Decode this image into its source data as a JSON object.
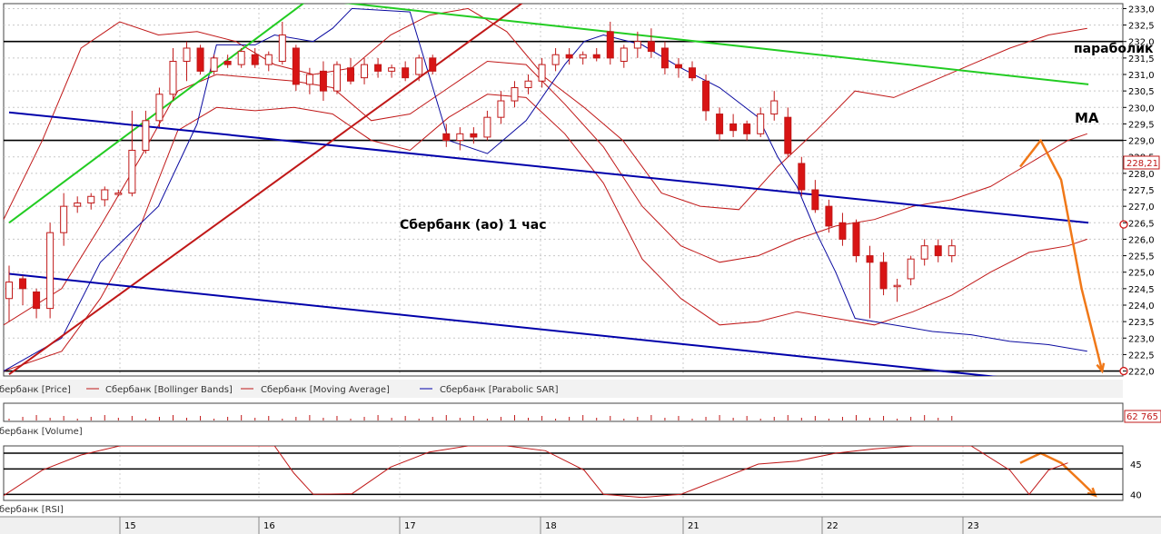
{
  "chart_data": {
    "type": "line",
    "annotations": {
      "main": "Сбербанк (ао)   1 час",
      "parabolic": "параболик",
      "ma": "МА"
    },
    "price_axis": {
      "ylim": [
        221.85,
        233.15
      ],
      "ticks": [
        "233,0",
        "232,5",
        "232,0",
        "231,5",
        "231,0",
        "230,5",
        "230,0",
        "229,5",
        "229,0",
        "228,5",
        "228,0",
        "227,5",
        "227,0",
        "226,5",
        "226,0",
        "225,5",
        "225,0",
        "224,5",
        "224,0",
        "223,5",
        "223,0",
        "222,5",
        "222,0"
      ],
      "current_label": "228,21",
      "current_value": 228.21
    },
    "volume_axis": {
      "label": "62 765"
    },
    "rsi_axis": {
      "ticks": [
        "45",
        "40"
      ],
      "ylim": [
        39,
        48
      ]
    },
    "x_axis": {
      "dates": [
        "15",
        "16",
        "17",
        "18",
        "21",
        "22",
        "23"
      ]
    },
    "legend": {
      "price": "Сбербанк [Price]",
      "bb": "Сбербанк [Bollinger Bands]",
      "ma": "Сбербанк [Moving Average]",
      "sar": "Сбербанк [Parabolic SAR]",
      "volume": "Сбербанк [Volume]",
      "rsi": "Сбербанк [RSI]"
    },
    "horizontal_levels": [
      232.0,
      229.0,
      222.0
    ],
    "trendlines": [
      {
        "name": "green-support",
        "color": "#22cc22",
        "from": [
          0,
          226.5
        ],
        "to": [
          22,
          233.3
        ]
      },
      {
        "name": "green-resistance",
        "color": "#22cc22",
        "from": [
          24,
          233.2
        ],
        "to": [
          79,
          230.7
        ]
      },
      {
        "name": "red-uptrend",
        "color": "#c01818",
        "from": [
          0,
          221.9
        ],
        "to": [
          38,
          233.3
        ]
      },
      {
        "name": "blue-channel-upper",
        "color": "#0000aa",
        "from": [
          0,
          229.85
        ],
        "to": [
          79,
          226.5
        ]
      },
      {
        "name": "blue-channel-lower",
        "color": "#0000aa",
        "from": [
          0,
          224.95
        ],
        "to": [
          74,
          221.75
        ]
      }
    ],
    "forecast_arrows": [
      {
        "name": "price-forecast",
        "color": "#f07818",
        "points": [
          [
            74,
            228.2
          ],
          [
            75.5,
            229.0
          ],
          [
            77,
            227.8
          ],
          [
            78.5,
            224.5
          ],
          [
            80,
            222.0
          ]
        ]
      },
      {
        "name": "rsi-forecast",
        "color": "#f07818",
        "points": [
          [
            74,
            45.2
          ],
          [
            75.5,
            46.8
          ],
          [
            77,
            45.2
          ],
          [
            78.5,
            42.0
          ],
          [
            79.5,
            39.8
          ]
        ]
      }
    ],
    "candles": [
      {
        "o": 224.2,
        "h": 225.2,
        "l": 223.5,
        "c": 224.7
      },
      {
        "o": 224.8,
        "h": 224.9,
        "l": 224.0,
        "c": 224.5
      },
      {
        "o": 224.4,
        "h": 224.5,
        "l": 223.6,
        "c": 223.9
      },
      {
        "o": 223.9,
        "h": 226.5,
        "l": 223.6,
        "c": 226.2
      },
      {
        "o": 226.2,
        "h": 227.4,
        "l": 225.8,
        "c": 227.0
      },
      {
        "o": 227.0,
        "h": 227.3,
        "l": 226.8,
        "c": 227.1
      },
      {
        "o": 227.1,
        "h": 227.4,
        "l": 226.9,
        "c": 227.3
      },
      {
        "o": 227.2,
        "h": 227.6,
        "l": 227.0,
        "c": 227.5
      },
      {
        "o": 227.4,
        "h": 227.5,
        "l": 227.3,
        "c": 227.4
      },
      {
        "o": 227.4,
        "h": 229.9,
        "l": 227.3,
        "c": 228.7
      },
      {
        "o": 228.7,
        "h": 229.9,
        "l": 228.6,
        "c": 229.6
      },
      {
        "o": 229.6,
        "h": 230.6,
        "l": 229.4,
        "c": 230.4
      },
      {
        "o": 230.4,
        "h": 231.8,
        "l": 230.2,
        "c": 231.4
      },
      {
        "o": 231.4,
        "h": 232.0,
        "l": 230.8,
        "c": 231.8
      },
      {
        "o": 231.8,
        "h": 231.9,
        "l": 231.0,
        "c": 231.1
      },
      {
        "o": 231.1,
        "h": 231.6,
        "l": 231.0,
        "c": 231.5
      },
      {
        "o": 231.4,
        "h": 231.6,
        "l": 231.2,
        "c": 231.3
      },
      {
        "o": 231.3,
        "h": 231.8,
        "l": 231.2,
        "c": 231.7
      },
      {
        "o": 231.6,
        "h": 231.8,
        "l": 231.2,
        "c": 231.3
      },
      {
        "o": 231.3,
        "h": 231.7,
        "l": 231.1,
        "c": 231.6
      },
      {
        "o": 231.4,
        "h": 232.6,
        "l": 231.3,
        "c": 232.2
      },
      {
        "o": 231.8,
        "h": 231.9,
        "l": 230.5,
        "c": 230.7
      },
      {
        "o": 230.7,
        "h": 231.2,
        "l": 230.4,
        "c": 231.0
      },
      {
        "o": 231.1,
        "h": 231.4,
        "l": 230.2,
        "c": 230.5
      },
      {
        "o": 230.5,
        "h": 231.4,
        "l": 230.4,
        "c": 231.3
      },
      {
        "o": 231.2,
        "h": 231.5,
        "l": 230.7,
        "c": 230.8
      },
      {
        "o": 230.9,
        "h": 231.5,
        "l": 230.7,
        "c": 231.3
      },
      {
        "o": 231.3,
        "h": 231.5,
        "l": 230.9,
        "c": 231.1
      },
      {
        "o": 231.1,
        "h": 231.3,
        "l": 230.9,
        "c": 231.2
      },
      {
        "o": 231.2,
        "h": 231.4,
        "l": 230.8,
        "c": 230.9
      },
      {
        "o": 231.0,
        "h": 231.6,
        "l": 230.8,
        "c": 231.5
      },
      {
        "o": 231.5,
        "h": 231.6,
        "l": 231.0,
        "c": 231.1
      },
      {
        "o": 229.2,
        "h": 229.5,
        "l": 228.8,
        "c": 229.0
      },
      {
        "o": 229.0,
        "h": 229.4,
        "l": 228.7,
        "c": 229.2
      },
      {
        "o": 229.2,
        "h": 229.4,
        "l": 228.9,
        "c": 229.1
      },
      {
        "o": 229.1,
        "h": 229.9,
        "l": 229.0,
        "c": 229.7
      },
      {
        "o": 229.7,
        "h": 230.5,
        "l": 229.5,
        "c": 230.2
      },
      {
        "o": 230.2,
        "h": 230.8,
        "l": 230.0,
        "c": 230.6
      },
      {
        "o": 230.6,
        "h": 231.0,
        "l": 230.4,
        "c": 230.8
      },
      {
        "o": 230.8,
        "h": 231.5,
        "l": 230.6,
        "c": 231.3
      },
      {
        "o": 231.3,
        "h": 231.8,
        "l": 231.1,
        "c": 231.6
      },
      {
        "o": 231.6,
        "h": 231.8,
        "l": 231.3,
        "c": 231.5
      },
      {
        "o": 231.5,
        "h": 231.7,
        "l": 231.3,
        "c": 231.6
      },
      {
        "o": 231.6,
        "h": 231.8,
        "l": 231.4,
        "c": 231.5
      },
      {
        "o": 232.3,
        "h": 232.6,
        "l": 231.3,
        "c": 231.5
      },
      {
        "o": 231.4,
        "h": 231.9,
        "l": 231.2,
        "c": 231.8
      },
      {
        "o": 231.8,
        "h": 232.3,
        "l": 231.5,
        "c": 232.0
      },
      {
        "o": 232.0,
        "h": 232.4,
        "l": 231.5,
        "c": 231.7
      },
      {
        "o": 231.8,
        "h": 232.0,
        "l": 231.0,
        "c": 231.2
      },
      {
        "o": 231.3,
        "h": 231.5,
        "l": 230.9,
        "c": 231.2
      },
      {
        "o": 231.2,
        "h": 231.4,
        "l": 230.8,
        "c": 230.9
      },
      {
        "o": 230.8,
        "h": 231.0,
        "l": 229.6,
        "c": 229.9
      },
      {
        "o": 229.8,
        "h": 230.0,
        "l": 229.0,
        "c": 229.2
      },
      {
        "o": 229.5,
        "h": 229.8,
        "l": 229.1,
        "c": 229.3
      },
      {
        "o": 229.5,
        "h": 229.6,
        "l": 229.0,
        "c": 229.2
      },
      {
        "o": 229.2,
        "h": 230.0,
        "l": 229.1,
        "c": 229.8
      },
      {
        "o": 229.8,
        "h": 230.5,
        "l": 229.6,
        "c": 230.2
      },
      {
        "o": 229.7,
        "h": 230.0,
        "l": 228.5,
        "c": 228.6
      },
      {
        "o": 228.3,
        "h": 228.5,
        "l": 227.3,
        "c": 227.5
      },
      {
        "o": 227.5,
        "h": 227.8,
        "l": 226.8,
        "c": 226.9
      },
      {
        "o": 227.0,
        "h": 227.2,
        "l": 226.2,
        "c": 226.4
      },
      {
        "o": 226.5,
        "h": 226.8,
        "l": 225.8,
        "c": 226.0
      },
      {
        "o": 226.5,
        "h": 226.6,
        "l": 225.3,
        "c": 225.5
      },
      {
        "o": 225.5,
        "h": 225.8,
        "l": 223.6,
        "c": 225.3
      },
      {
        "o": 225.3,
        "h": 225.6,
        "l": 224.3,
        "c": 224.5
      },
      {
        "o": 224.6,
        "h": 224.8,
        "l": 224.1,
        "c": 224.6
      },
      {
        "o": 224.8,
        "h": 225.5,
        "l": 224.6,
        "c": 225.4
      },
      {
        "o": 225.4,
        "h": 226.0,
        "l": 225.2,
        "c": 225.8
      },
      {
        "o": 225.8,
        "h": 226.0,
        "l": 225.3,
        "c": 225.5
      },
      {
        "o": 225.5,
        "h": 226.0,
        "l": 225.3,
        "c": 225.8
      }
    ],
    "bollinger_upper": [
      [
        0,
        226.6
      ],
      [
        4,
        229.0
      ],
      [
        8,
        231.8
      ],
      [
        12,
        232.6
      ],
      [
        16,
        232.2
      ],
      [
        20,
        232.3
      ],
      [
        24,
        232.0
      ],
      [
        28,
        231.3
      ],
      [
        32,
        231.0
      ],
      [
        36,
        231.2
      ],
      [
        40,
        232.2
      ],
      [
        44,
        232.8
      ],
      [
        48,
        233.0
      ],
      [
        52,
        232.3
      ],
      [
        56,
        230.9
      ],
      [
        60,
        230.0
      ],
      [
        64,
        229.0
      ],
      [
        68,
        227.4
      ],
      [
        72,
        227.0
      ],
      [
        76,
        226.9
      ],
      [
        80,
        228.2
      ],
      [
        84,
        229.3
      ],
      [
        88,
        230.5
      ],
      [
        92,
        230.3
      ],
      [
        96,
        230.8
      ],
      [
        100,
        231.3
      ],
      [
        104,
        231.8
      ],
      [
        108,
        232.2
      ],
      [
        112,
        232.4
      ]
    ],
    "bollinger_lower": [
      [
        0,
        222.0
      ],
      [
        6,
        222.6
      ],
      [
        10,
        224.2
      ],
      [
        14,
        226.3
      ],
      [
        18,
        229.3
      ],
      [
        22,
        230.0
      ],
      [
        26,
        229.9
      ],
      [
        30,
        230.0
      ],
      [
        34,
        229.8
      ],
      [
        38,
        229.0
      ],
      [
        42,
        228.7
      ],
      [
        46,
        229.7
      ],
      [
        50,
        230.4
      ],
      [
        54,
        230.3
      ],
      [
        58,
        229.2
      ],
      [
        62,
        227.7
      ],
      [
        66,
        225.4
      ],
      [
        70,
        224.2
      ],
      [
        74,
        223.4
      ],
      [
        78,
        223.5
      ],
      [
        82,
        223.8
      ],
      [
        86,
        223.6
      ],
      [
        90,
        223.4
      ],
      [
        94,
        223.8
      ],
      [
        98,
        224.3
      ],
      [
        102,
        225.0
      ],
      [
        106,
        225.6
      ],
      [
        110,
        225.8
      ],
      [
        112,
        226.0
      ]
    ],
    "moving_average": [
      [
        0,
        223.4
      ],
      [
        6,
        224.5
      ],
      [
        10,
        226.4
      ],
      [
        14,
        228.4
      ],
      [
        18,
        230.5
      ],
      [
        22,
        231.0
      ],
      [
        26,
        230.9
      ],
      [
        30,
        230.8
      ],
      [
        34,
        230.6
      ],
      [
        38,
        229.6
      ],
      [
        42,
        229.8
      ],
      [
        46,
        230.6
      ],
      [
        50,
        231.4
      ],
      [
        54,
        231.3
      ],
      [
        58,
        230.1
      ],
      [
        62,
        228.8
      ],
      [
        66,
        227.0
      ],
      [
        70,
        225.8
      ],
      [
        74,
        225.3
      ],
      [
        78,
        225.5
      ],
      [
        82,
        226.0
      ],
      [
        86,
        226.4
      ],
      [
        90,
        226.6
      ],
      [
        94,
        227.0
      ],
      [
        98,
        227.2
      ],
      [
        102,
        227.6
      ],
      [
        106,
        228.3
      ],
      [
        110,
        229.0
      ],
      [
        112,
        229.2
      ]
    ],
    "parabolic_sar": [
      [
        0,
        222.0
      ],
      [
        6,
        223.0
      ],
      [
        10,
        225.3
      ],
      [
        16,
        227.0
      ],
      [
        20,
        229.5
      ],
      [
        22,
        231.9
      ],
      [
        26,
        231.9
      ],
      [
        28,
        232.2
      ],
      [
        32,
        232.0
      ],
      [
        34,
        232.4
      ],
      [
        36,
        233.0
      ],
      [
        42,
        232.9
      ],
      [
        46,
        229.0
      ],
      [
        50,
        228.6
      ],
      [
        54,
        229.6
      ],
      [
        58,
        231.3
      ],
      [
        60,
        232.0
      ],
      [
        62,
        232.2
      ],
      [
        66,
        231.9
      ],
      [
        70,
        231.2
      ],
      [
        74,
        230.6
      ],
      [
        78,
        229.7
      ],
      [
        80,
        228.5
      ],
      [
        82,
        227.6
      ],
      [
        84,
        226.2
      ],
      [
        86,
        225.0
      ],
      [
        88,
        223.6
      ],
      [
        92,
        223.4
      ],
      [
        96,
        223.2
      ],
      [
        100,
        223.1
      ],
      [
        104,
        222.9
      ],
      [
        108,
        222.8
      ],
      [
        112,
        222.6
      ]
    ],
    "rsi": [
      [
        0,
        39.8
      ],
      [
        4,
        44.0
      ],
      [
        8,
        46.5
      ],
      [
        12,
        48.0
      ],
      [
        16,
        48.0
      ],
      [
        20,
        48.0
      ],
      [
        24,
        48.0
      ],
      [
        28,
        48.0
      ],
      [
        30,
        43.5
      ],
      [
        32,
        40.0
      ],
      [
        36,
        40.1
      ],
      [
        40,
        44.5
      ],
      [
        44,
        47.0
      ],
      [
        48,
        48.0
      ],
      [
        52,
        48.0
      ],
      [
        56,
        47.2
      ],
      [
        60,
        44.0
      ],
      [
        62,
        40.0
      ],
      [
        66,
        39.5
      ],
      [
        70,
        40.0
      ],
      [
        74,
        42.5
      ],
      [
        78,
        45.0
      ],
      [
        82,
        45.5
      ],
      [
        86,
        46.8
      ],
      [
        90,
        47.5
      ],
      [
        94,
        48.0
      ],
      [
        100,
        48.0
      ],
      [
        104,
        44.0
      ],
      [
        106,
        40.0
      ],
      [
        108,
        44.0
      ],
      [
        110,
        45.2
      ]
    ]
  }
}
